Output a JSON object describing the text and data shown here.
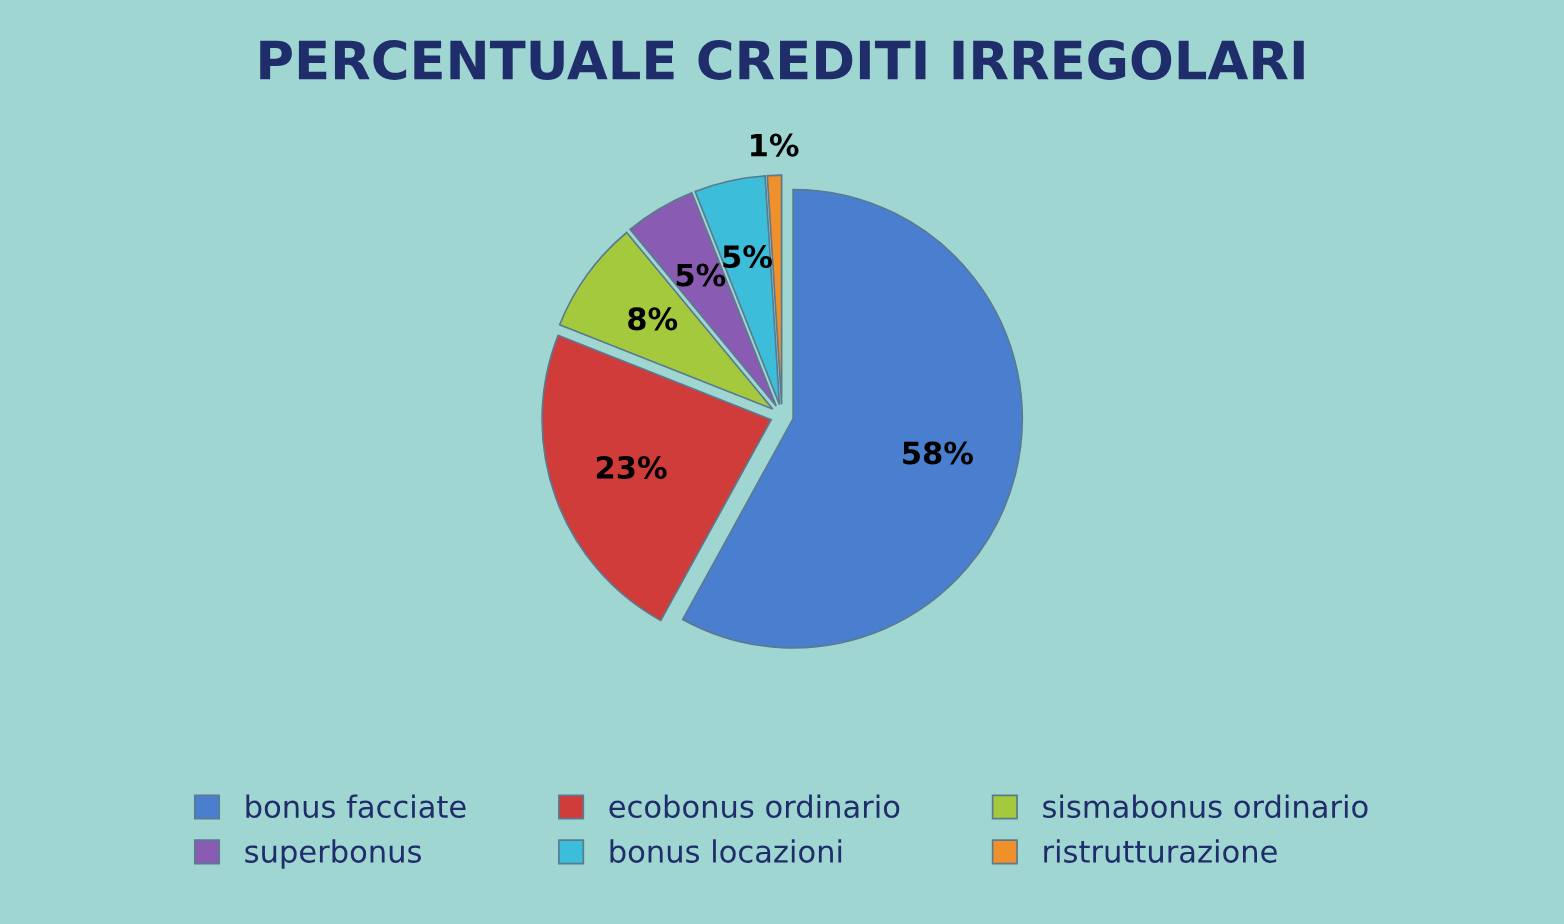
{
  "chart_data": {
    "type": "pie",
    "title": "PERCENTUALE CREDITI IRREGOLARI",
    "categories": [
      "bonus facciate",
      "ecobonus ordinario",
      "sismabonus ordinario",
      "superbonus",
      "bonus locazioni",
      "ristrutturazione"
    ],
    "values": [
      58,
      23,
      8,
      5,
      5,
      1
    ],
    "value_labels": [
      "58%",
      "23%",
      "8%",
      "5%",
      "5%",
      "1%"
    ],
    "colors": [
      "#4a7fd0",
      "#d03c3a",
      "#a5c93c",
      "#8a5bb2",
      "#3cbdd9",
      "#f0902a"
    ],
    "legend": "bottom"
  }
}
